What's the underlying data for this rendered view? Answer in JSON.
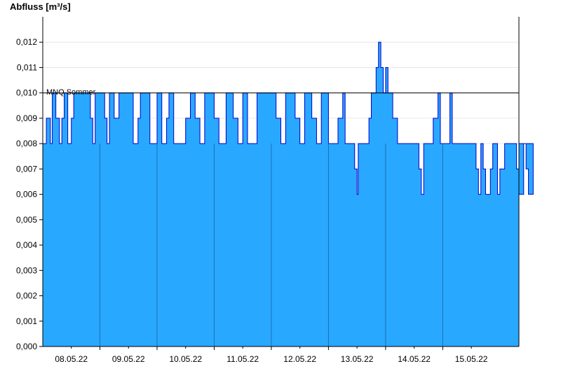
{
  "chart_data": {
    "type": "area",
    "ylabel": "Abfluss [m³/s]",
    "ylim": [
      0,
      0.013
    ],
    "yticks": [
      "0,000",
      "0,001",
      "0,002",
      "0,003",
      "0,004",
      "0,005",
      "0,006",
      "0,007",
      "0,008",
      "0,009",
      "0,010",
      "0,011",
      "0,012"
    ],
    "x_start": "07.05.22 12:00",
    "x_end": "15.05.22 20:00",
    "xticks": [
      "08.05.22",
      "09.05.22",
      "10.05.22",
      "11.05.22",
      "12.05.22",
      "13.05.22",
      "14.05.22",
      "15.05.22"
    ],
    "day_boundaries": [
      "08.05.22 12:00",
      "09.05.22 12:00",
      "10.05.22 12:00",
      "11.05.22 12:00",
      "12.05.22 12:00",
      "13.05.22 12:00",
      "14.05.22 12:00"
    ],
    "grid": true,
    "fill_color": "#29a8ff",
    "line_color": "#0000cc",
    "reference_line": {
      "label": "MNQ Sommer",
      "value": 0.01
    },
    "series": [
      {
        "step_segments_hours": [
          [
            0,
            0.008
          ],
          [
            1.5,
            0.009
          ],
          [
            3.2,
            0.008
          ],
          [
            4,
            0.01
          ],
          [
            5.5,
            0.009
          ],
          [
            7,
            0.008
          ],
          [
            8,
            0.009
          ],
          [
            9,
            0.01
          ],
          [
            10.5,
            0.008
          ],
          [
            12,
            0.009
          ],
          [
            13,
            0.01
          ],
          [
            20,
            0.009
          ],
          [
            21,
            0.008
          ],
          [
            22,
            0.01
          ],
          [
            26,
            0.009
          ],
          [
            27,
            0.008
          ],
          [
            28,
            0.01
          ],
          [
            30,
            0.009
          ],
          [
            32,
            0.01
          ],
          [
            38,
            0.008
          ],
          [
            40,
            0.009
          ],
          [
            41,
            0.01
          ],
          [
            45,
            0.008
          ],
          [
            48,
            0.01
          ],
          [
            50,
            0.008
          ],
          [
            52,
            0.009
          ],
          [
            53,
            0.01
          ],
          [
            55,
            0.008
          ],
          [
            60,
            0.009
          ],
          [
            62,
            0.01
          ],
          [
            64,
            0.009
          ],
          [
            66,
            0.008
          ],
          [
            68,
            0.01
          ],
          [
            72,
            0.009
          ],
          [
            74,
            0.008
          ],
          [
            77,
            0.01
          ],
          [
            80,
            0.009
          ],
          [
            82,
            0.008
          ],
          [
            84,
            0.01
          ],
          [
            86,
            0.008
          ],
          [
            90,
            0.01
          ],
          [
            98,
            0.009
          ],
          [
            100,
            0.008
          ],
          [
            102,
            0.01
          ],
          [
            106,
            0.009
          ],
          [
            108,
            0.008
          ],
          [
            110,
            0.01
          ],
          [
            113,
            0.009
          ],
          [
            115,
            0.008
          ],
          [
            117,
            0.01
          ],
          [
            120,
            0.008
          ],
          [
            124,
            0.009
          ],
          [
            126,
            0.01
          ],
          [
            127,
            0.008
          ],
          [
            131,
            0.007
          ],
          [
            132,
            0.006
          ],
          [
            132.5,
            0.008
          ],
          [
            137,
            0.009
          ],
          [
            138,
            0.01
          ],
          [
            140,
            0.011
          ],
          [
            141,
            0.012
          ],
          [
            142,
            0.011
          ],
          [
            143,
            0.01
          ],
          [
            144,
            0.011
          ],
          [
            145,
            0.01
          ],
          [
            147,
            0.009
          ],
          [
            149,
            0.008
          ],
          [
            158,
            0.007
          ],
          [
            159,
            0.006
          ],
          [
            160,
            0.008
          ],
          [
            164,
            0.009
          ],
          [
            166,
            0.01
          ],
          [
            167,
            0.008
          ],
          [
            171,
            0.01
          ],
          [
            172,
            0.008
          ],
          [
            182,
            0.007
          ],
          [
            183,
            0.006
          ],
          [
            184,
            0.008
          ],
          [
            185,
            0.007
          ],
          [
            186,
            0.006
          ],
          [
            188,
            0.007
          ],
          [
            189,
            0.008
          ],
          [
            191,
            0.006
          ],
          [
            192,
            0.007
          ],
          [
            194,
            0.008
          ],
          [
            199,
            0.007
          ],
          [
            200,
            0.006
          ],
          [
            202,
            0.008
          ],
          [
            203,
            0.007
          ],
          [
            204,
            0.006
          ],
          [
            206,
            0.008
          ]
        ]
      }
    ]
  }
}
